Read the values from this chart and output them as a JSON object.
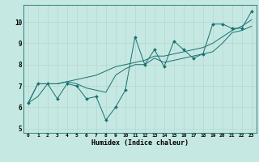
{
  "title": "",
  "xlabel": "Humidex (Indice chaleur)",
  "ylabel": "",
  "xlim": [
    -0.5,
    23.5
  ],
  "ylim": [
    4.8,
    10.8
  ],
  "yticks": [
    5,
    6,
    7,
    8,
    9,
    10
  ],
  "xticks": [
    0,
    1,
    2,
    3,
    4,
    5,
    6,
    7,
    8,
    9,
    10,
    11,
    12,
    13,
    14,
    15,
    16,
    17,
    18,
    19,
    20,
    21,
    22,
    23
  ],
  "bg_color": "#c5e8e2",
  "line_color": "#1a7070",
  "series_jagged": [
    6.2,
    7.1,
    7.1,
    6.4,
    7.1,
    7.0,
    6.4,
    6.5,
    5.4,
    6.0,
    6.8,
    9.3,
    8.0,
    8.7,
    7.9,
    9.1,
    8.7,
    8.3,
    8.5,
    9.9,
    9.9,
    9.7,
    9.7,
    10.5
  ],
  "series_smooth1": [
    6.2,
    7.1,
    7.1,
    7.1,
    7.2,
    7.1,
    6.9,
    6.8,
    6.7,
    7.5,
    7.8,
    8.0,
    8.0,
    8.3,
    8.1,
    8.2,
    8.3,
    8.4,
    8.5,
    8.6,
    9.0,
    9.5,
    9.6,
    9.8
  ],
  "series_smooth2": [
    6.2,
    6.5,
    7.1,
    7.1,
    7.2,
    7.3,
    7.4,
    7.5,
    7.7,
    7.9,
    8.0,
    8.1,
    8.2,
    8.4,
    8.4,
    8.5,
    8.6,
    8.7,
    8.8,
    9.0,
    9.3,
    9.6,
    9.8,
    10.1
  ],
  "grid_color": "#b8d8d0",
  "fig_bg": "#c5e8e2",
  "spine_color": "#1a7070"
}
